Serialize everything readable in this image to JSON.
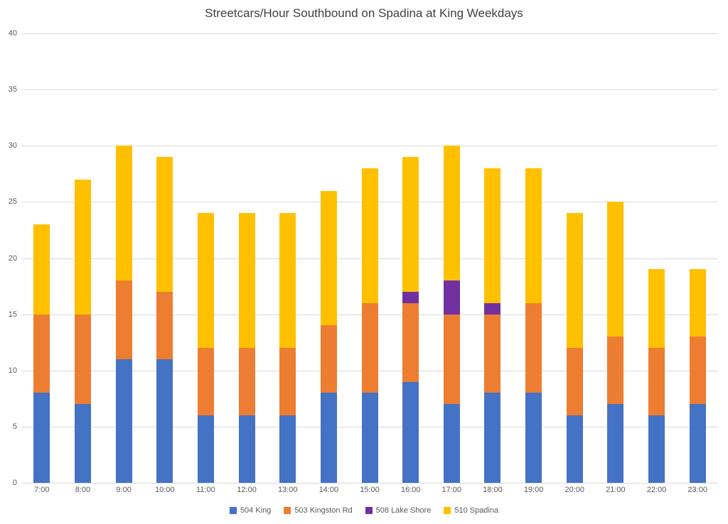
{
  "title": "Streetcars/Hour Southbound on Spadina at King Weekdays",
  "chart_data": {
    "type": "bar",
    "stacked": true,
    "title": "Streetcars/Hour Southbound on Spadina at King Weekdays",
    "xlabel": "",
    "ylabel": "",
    "ylim": [
      0,
      40
    ],
    "ytick_interval": 5,
    "grid": true,
    "legend_position": "bottom",
    "categories": [
      "7:00",
      "8:00",
      "9:00",
      "10:00",
      "11:00",
      "12:00",
      "13:00",
      "14:00",
      "15:00",
      "16:00",
      "17:00",
      "18:00",
      "19:00",
      "20:00",
      "21:00",
      "22:00",
      "23:00"
    ],
    "series": [
      {
        "name": "504 King",
        "color": "#4472C4",
        "values": [
          8,
          7,
          11,
          11,
          6,
          6,
          6,
          8,
          8,
          9,
          7,
          8,
          8,
          6,
          7,
          6,
          7
        ]
      },
      {
        "name": "503 Kingston Rd",
        "color": "#ED7D31",
        "values": [
          7,
          8,
          7,
          6,
          6,
          6,
          6,
          6,
          8,
          7,
          8,
          7,
          8,
          6,
          6,
          6,
          6
        ]
      },
      {
        "name": "508 Lake Shore",
        "color": "#7030A0",
        "values": [
          0,
          0,
          0,
          0,
          0,
          0,
          0,
          0,
          0,
          1,
          3,
          1,
          0,
          0,
          0,
          0,
          0
        ]
      },
      {
        "name": "510 Spadina",
        "color": "#FFC000",
        "values": [
          8,
          12,
          12,
          12,
          12,
          12,
          12,
          12,
          12,
          12,
          12,
          12,
          12,
          12,
          12,
          7,
          6
        ]
      }
    ],
    "totals": [
      23,
      27,
      30,
      29,
      24,
      24,
      24,
      26,
      28,
      29,
      30,
      28,
      28,
      24,
      25,
      19,
      19
    ]
  },
  "colors": {
    "background": "#ffffff",
    "gridline": "#d9d9d9",
    "axis_text": "#595959",
    "title_text": "#404040"
  }
}
